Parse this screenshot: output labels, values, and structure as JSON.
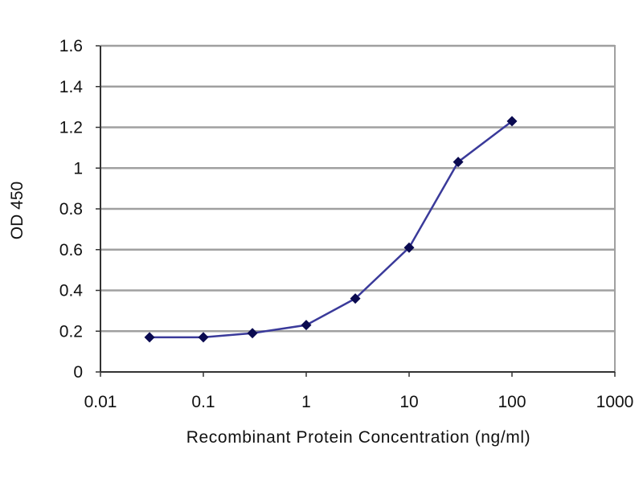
{
  "chart_data": {
    "type": "line",
    "title": "",
    "xlabel": "Recombinant Protein Concentration (ng/ml)",
    "ylabel": "OD 450",
    "xscale": "log",
    "xlim": [
      0.01,
      1000
    ],
    "ylim": [
      0,
      1.6
    ],
    "xticks": [
      "0.01",
      "0.1",
      "1",
      "10",
      "100",
      "1000"
    ],
    "yticks": [
      "0",
      "0.2",
      "0.4",
      "0.6",
      "0.8",
      "1",
      "1.2",
      "1.4",
      "1.6"
    ],
    "grid": "horizontal",
    "legend": "none",
    "series": [
      {
        "x": [
          0.03,
          0.1,
          0.3,
          1,
          3,
          10,
          30,
          100
        ],
        "y": [
          0.17,
          0.17,
          0.19,
          0.23,
          0.36,
          0.61,
          1.03,
          1.23
        ],
        "color": "#3a3a9a",
        "marker": "diamond",
        "marker_color": "#0a0a50"
      }
    ],
    "gridline_color": "#a0a0a0"
  }
}
